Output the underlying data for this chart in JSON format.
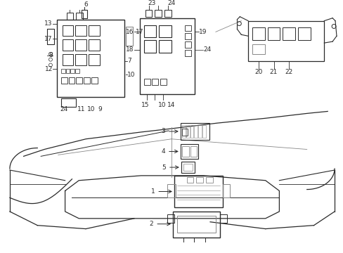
{
  "bg_color": "#ffffff",
  "lc": "#2a2a2a",
  "gc": "#888888",
  "fig_width": 4.89,
  "fig_height": 3.6,
  "dpi": 100,
  "labels": {
    "left_top": [
      "13",
      "6",
      "17",
      "17",
      "8",
      "12",
      "7",
      "10",
      "24",
      "11",
      "10",
      "9"
    ],
    "mid_top": [
      "23",
      "24",
      "16",
      "18",
      "19",
      "24",
      "15",
      "10",
      "14"
    ],
    "right": [
      "20",
      "21",
      "22"
    ],
    "car": [
      "3",
      "4",
      "5",
      "1",
      "2"
    ]
  }
}
